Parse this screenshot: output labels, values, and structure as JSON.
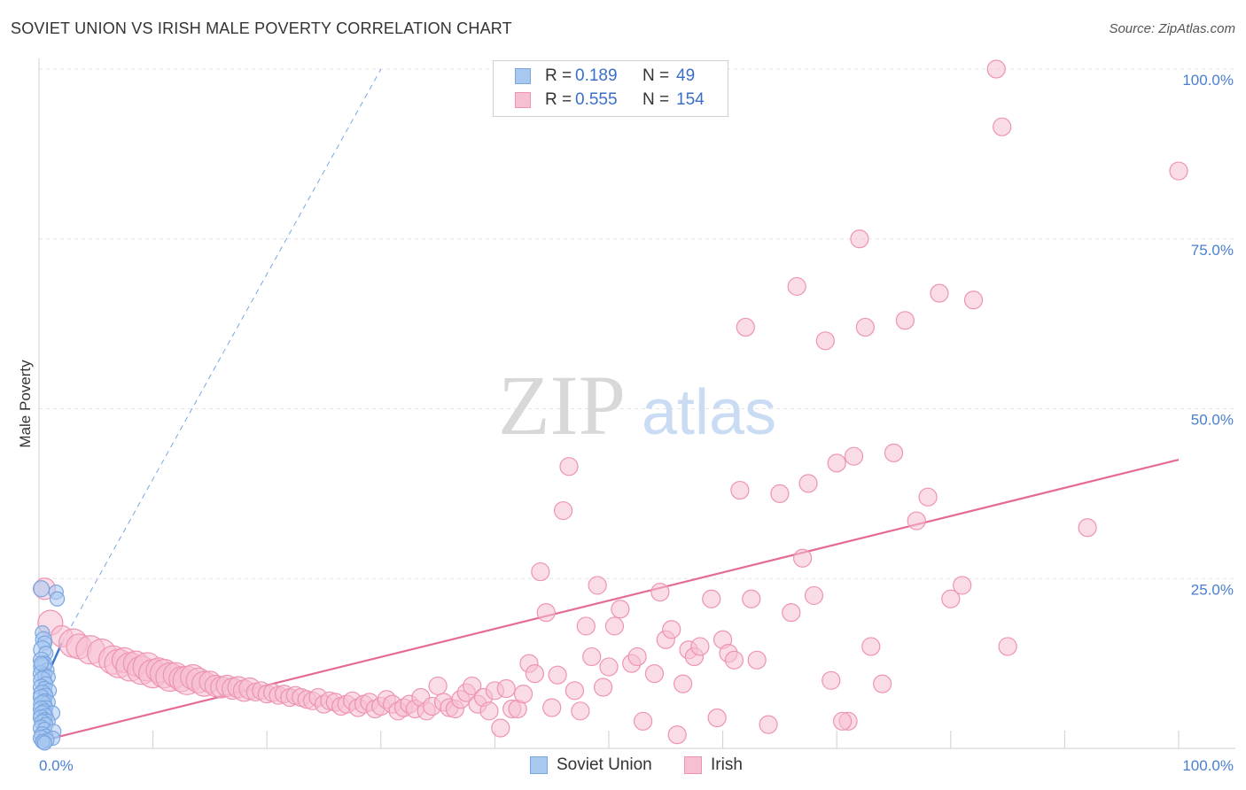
{
  "header": {
    "title": "SOVIET UNION VS IRISH MALE POVERTY CORRELATION CHART",
    "source": "Source: ZipAtlas.com"
  },
  "watermark": {
    "zip": "ZIP",
    "atlas": "atlas"
  },
  "legend": {
    "rows": [
      {
        "r_label": "R =",
        "r_value": "0.189",
        "n_label": "N =",
        "n_value": "49",
        "color": "#a9c8f0",
        "border": "#7aa6e0"
      },
      {
        "r_label": "R =",
        "r_value": "0.555",
        "n_label": "N =",
        "n_value": "154",
        "color": "#f6c0d2",
        "border": "#ee93b2"
      }
    ]
  },
  "chart_data": {
    "type": "scatter",
    "title": "SOVIET UNION VS IRISH MALE POVERTY CORRELATION CHART",
    "xlabel": "",
    "ylabel": "Male Poverty",
    "xlim": [
      0,
      100
    ],
    "ylim": [
      0,
      100
    ],
    "x_tick_labels": [
      "0.0%",
      "100.0%"
    ],
    "y_tick_labels": [
      "25.0%",
      "50.0%",
      "75.0%",
      "100.0%"
    ],
    "y_ticks": [
      25,
      50,
      75,
      100
    ],
    "grid": true,
    "legend_placement": "bottom-center",
    "series": [
      {
        "name": "Soviet Union",
        "color": "#7aa6e0",
        "fill": "#a9c8f0",
        "trend": {
          "x": [
            0,
            2
          ],
          "y": [
            8.0,
            15.5
          ],
          "extended_x": [
            2,
            30
          ],
          "extended_y": [
            15.5,
            100
          ]
        },
        "points": [
          [
            0.2,
            23.5,
            9
          ],
          [
            1.5,
            23,
            8
          ],
          [
            1.6,
            22,
            8
          ],
          [
            0.3,
            17,
            8
          ],
          [
            0.4,
            16,
            9
          ],
          [
            0.5,
            15.5,
            8
          ],
          [
            0.3,
            14.5,
            10
          ],
          [
            0.6,
            14,
            8
          ],
          [
            0.2,
            13,
            9
          ],
          [
            0.5,
            12.5,
            8
          ],
          [
            0.3,
            12,
            10
          ],
          [
            0.7,
            11.5,
            8
          ],
          [
            0.2,
            11,
            9
          ],
          [
            0.5,
            10.8,
            8
          ],
          [
            0.8,
            10.5,
            8
          ],
          [
            0.3,
            10,
            10
          ],
          [
            0.6,
            9.5,
            8
          ],
          [
            0.2,
            9,
            9
          ],
          [
            0.5,
            8.8,
            8
          ],
          [
            0.9,
            8.5,
            8
          ],
          [
            0.3,
            8,
            10
          ],
          [
            0.6,
            7.8,
            8
          ],
          [
            0.2,
            7.5,
            9
          ],
          [
            0.5,
            7,
            8
          ],
          [
            0.8,
            6.8,
            8
          ],
          [
            0.3,
            6.5,
            10
          ],
          [
            0.6,
            6,
            8
          ],
          [
            0.2,
            5.8,
            9
          ],
          [
            0.5,
            5.5,
            8
          ],
          [
            1.2,
            5.2,
            8
          ],
          [
            0.3,
            5,
            10
          ],
          [
            0.6,
            4.8,
            8
          ],
          [
            0.2,
            4.5,
            9
          ],
          [
            0.5,
            4.2,
            8
          ],
          [
            0.8,
            4,
            8
          ],
          [
            0.3,
            3.8,
            9
          ],
          [
            0.6,
            3.5,
            8
          ],
          [
            0.2,
            3,
            9
          ],
          [
            0.5,
            2.8,
            8
          ],
          [
            1.3,
            2.5,
            8
          ],
          [
            0.3,
            2,
            9
          ],
          [
            0.6,
            1.8,
            8
          ],
          [
            0.2,
            1.5,
            9
          ],
          [
            1.2,
            1.5,
            8
          ],
          [
            0.4,
            1,
            8
          ],
          [
            0.7,
            1.2,
            8
          ],
          [
            0.3,
            1,
            8
          ],
          [
            0.5,
            0.8,
            8
          ],
          [
            0.2,
            12.5,
            8
          ]
        ]
      },
      {
        "name": "Irish",
        "color": "#ee93b2",
        "fill": "#f6c0d2",
        "trend": {
          "x": [
            0,
            100
          ],
          "y": [
            1.0,
            42.5
          ]
        },
        "points": [
          [
            0.5,
            23.5,
            12
          ],
          [
            1.0,
            18.5,
            14
          ],
          [
            2.0,
            16.5,
            12
          ],
          [
            3.0,
            15.5,
            16
          ],
          [
            3.5,
            15,
            14
          ],
          [
            4.5,
            14.5,
            16
          ],
          [
            5.5,
            14,
            16
          ],
          [
            6.5,
            13,
            16
          ],
          [
            7.0,
            12.5,
            16
          ],
          [
            7.5,
            13,
            14
          ],
          [
            8,
            12,
            16
          ],
          [
            8.5,
            12.5,
            14
          ],
          [
            9,
            11.5,
            16
          ],
          [
            9.5,
            12,
            16
          ],
          [
            10,
            11,
            16
          ],
          [
            10.5,
            11.5,
            14
          ],
          [
            11,
            11,
            16
          ],
          [
            11.5,
            10.5,
            16
          ],
          [
            12,
            10.8,
            14
          ],
          [
            12.5,
            10.2,
            14
          ],
          [
            13,
            10,
            16
          ],
          [
            13.5,
            10.5,
            14
          ],
          [
            14,
            10,
            14
          ],
          [
            14.5,
            9.5,
            14
          ],
          [
            15,
            9.8,
            12
          ],
          [
            15.5,
            9.2,
            12
          ],
          [
            16,
            9,
            12
          ],
          [
            16.5,
            9.2,
            12
          ],
          [
            17,
            8.8,
            12
          ],
          [
            17.5,
            9,
            12
          ],
          [
            18,
            8.5,
            12
          ],
          [
            18.5,
            8.8,
            12
          ],
          [
            19,
            8.3,
            10
          ],
          [
            19.5,
            8.5,
            10
          ],
          [
            20,
            8,
            10
          ],
          [
            20.5,
            8.2,
            10
          ],
          [
            21,
            7.8,
            10
          ],
          [
            21.5,
            8,
            10
          ],
          [
            22,
            7.5,
            10
          ],
          [
            22.5,
            7.8,
            10
          ],
          [
            23,
            7.5,
            10
          ],
          [
            23.5,
            7.2,
            10
          ],
          [
            24,
            7,
            10
          ],
          [
            24.5,
            7.5,
            10
          ],
          [
            25,
            6.5,
            10
          ],
          [
            25.5,
            7,
            10
          ],
          [
            26,
            6.8,
            10
          ],
          [
            26.5,
            6.2,
            10
          ],
          [
            27,
            6.5,
            10
          ],
          [
            27.5,
            7,
            10
          ],
          [
            28,
            6,
            10
          ],
          [
            28.5,
            6.5,
            10
          ],
          [
            29,
            6.8,
            10
          ],
          [
            29.5,
            5.8,
            10
          ],
          [
            30,
            6.2,
            10
          ],
          [
            30.5,
            7.2,
            10
          ],
          [
            31,
            6.5,
            10
          ],
          [
            31.5,
            5.5,
            10
          ],
          [
            32,
            6,
            10
          ],
          [
            32.5,
            6.5,
            10
          ],
          [
            33,
            5.8,
            10
          ],
          [
            33.5,
            7.5,
            10
          ],
          [
            34,
            5.5,
            10
          ],
          [
            34.5,
            6.2,
            10
          ],
          [
            35,
            9.2,
            10
          ],
          [
            35.5,
            6.8,
            10
          ],
          [
            36,
            6,
            10
          ],
          [
            36.5,
            5.8,
            10
          ],
          [
            37,
            7.2,
            10
          ],
          [
            37.5,
            8.2,
            10
          ],
          [
            38,
            9.2,
            10
          ],
          [
            38.5,
            6.5,
            10
          ],
          [
            39,
            7.5,
            10
          ],
          [
            39.5,
            5.5,
            10
          ],
          [
            40,
            8.5,
            10
          ],
          [
            40.5,
            3,
            10
          ],
          [
            41,
            8.8,
            10
          ],
          [
            41.5,
            5.8,
            10
          ],
          [
            42,
            5.8,
            10
          ],
          [
            42.5,
            8,
            10
          ],
          [
            43,
            12.5,
            10
          ],
          [
            43.5,
            11,
            10
          ],
          [
            44,
            26,
            10
          ],
          [
            44.5,
            20,
            10
          ],
          [
            45,
            6,
            10
          ],
          [
            45.5,
            10.8,
            10
          ],
          [
            46,
            35,
            10
          ],
          [
            46.5,
            41.5,
            10
          ],
          [
            47,
            8.5,
            10
          ],
          [
            47.5,
            5.5,
            10
          ],
          [
            48,
            18,
            10
          ],
          [
            48.5,
            13.5,
            10
          ],
          [
            49,
            24,
            10
          ],
          [
            49.5,
            9,
            10
          ],
          [
            50,
            12,
            10
          ],
          [
            50.5,
            18,
            10
          ],
          [
            51,
            20.5,
            10
          ],
          [
            52,
            12.5,
            10
          ],
          [
            52.5,
            13.5,
            10
          ],
          [
            53,
            4,
            10
          ],
          [
            54,
            11,
            10
          ],
          [
            54.5,
            23,
            10
          ],
          [
            55,
            16,
            10
          ],
          [
            55.5,
            17.5,
            10
          ],
          [
            56,
            2,
            10
          ],
          [
            56.5,
            9.5,
            10
          ],
          [
            57,
            14.5,
            10
          ],
          [
            57.5,
            13.5,
            10
          ],
          [
            59,
            22,
            10
          ],
          [
            59.5,
            4.5,
            10
          ],
          [
            60,
            16,
            10
          ],
          [
            60.5,
            14,
            10
          ],
          [
            61,
            13,
            10
          ],
          [
            62,
            62,
            10
          ],
          [
            61.5,
            38,
            10
          ],
          [
            62.5,
            22,
            10
          ],
          [
            63,
            13,
            10
          ],
          [
            64,
            3.5,
            10
          ],
          [
            65,
            37.5,
            10
          ],
          [
            66,
            20,
            10
          ],
          [
            66.5,
            68,
            10
          ],
          [
            67,
            28,
            10
          ],
          [
            67.5,
            39,
            10
          ],
          [
            68,
            22.5,
            10
          ],
          [
            69,
            60,
            10
          ],
          [
            69.5,
            10,
            10
          ],
          [
            70,
            42,
            10
          ],
          [
            71,
            4,
            10
          ],
          [
            71.5,
            43,
            10
          ],
          [
            72,
            75,
            10
          ],
          [
            72.5,
            62,
            10
          ],
          [
            73,
            15,
            10
          ],
          [
            74,
            9.5,
            10
          ],
          [
            75,
            43.5,
            10
          ],
          [
            76,
            63,
            10
          ],
          [
            77,
            33.5,
            10
          ],
          [
            78,
            37,
            10
          ],
          [
            79,
            67,
            10
          ],
          [
            80,
            22,
            10
          ],
          [
            81,
            24,
            10
          ],
          [
            82,
            66,
            10
          ],
          [
            84,
            100,
            10
          ],
          [
            84.5,
            91.5,
            10
          ],
          [
            85,
            15,
            10
          ],
          [
            92,
            32.5,
            10
          ],
          [
            100,
            85,
            10
          ],
          [
            70.5,
            4,
            10
          ],
          [
            58,
            15,
            10
          ]
        ]
      }
    ]
  },
  "bottom_legend": [
    {
      "label": "Soviet Union",
      "color": "#a9c8f0",
      "border": "#7aa6e0"
    },
    {
      "label": "Irish",
      "color": "#f6c0d2",
      "border": "#ee93b2"
    }
  ]
}
